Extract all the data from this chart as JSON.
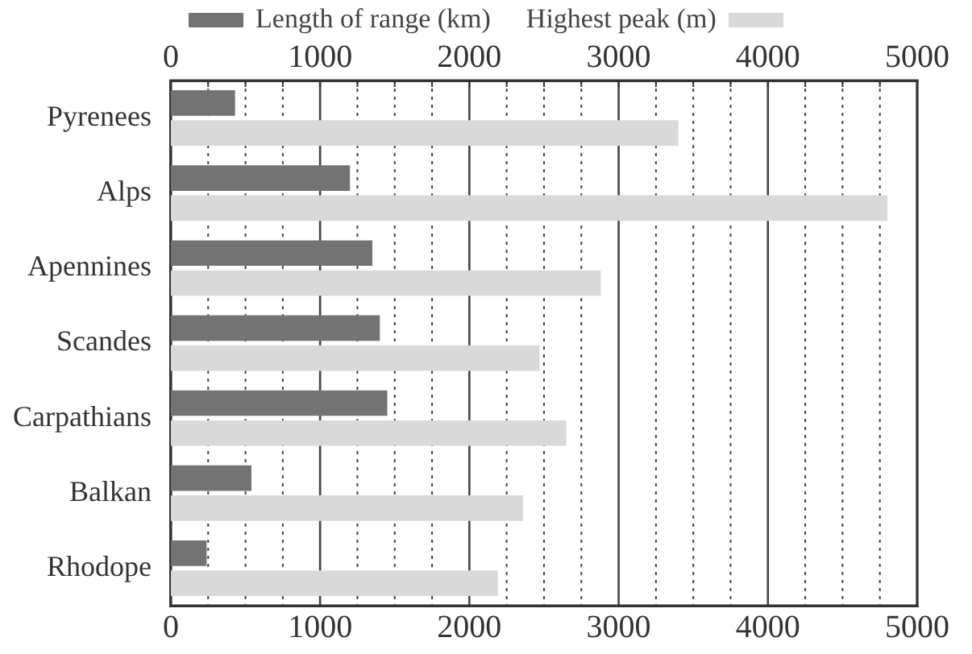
{
  "chart_data": {
    "type": "bar",
    "orientation": "horizontal",
    "categories": [
      "Pyrenees",
      "Alps",
      "Apennines",
      "Scandes",
      "Carpathians",
      "Balkan",
      "Rhodope"
    ],
    "series": [
      {
        "name": "Length of range (km)",
        "color": "#737373",
        "values": [
          430,
          1200,
          1350,
          1400,
          1450,
          540,
          240
        ]
      },
      {
        "name": "Highest peak (m)",
        "color": "#d9d9d9",
        "values": [
          3400,
          4800,
          2880,
          2470,
          2650,
          2360,
          2190
        ]
      }
    ],
    "xlim": [
      0,
      5000
    ],
    "xticks": [
      0,
      {
        "value": 250,
        "label": null
      },
      {
        "value": 500,
        "label": null
      },
      {
        "value": 750,
        "label": null
      },
      1000,
      {
        "value": 1250,
        "label": null
      },
      {
        "value": 1500,
        "label": null
      },
      {
        "value": 1750,
        "label": null
      },
      2000,
      {
        "value": 2250,
        "label": null
      },
      {
        "value": 2500,
        "label": null
      },
      {
        "value": 2750,
        "label": null
      },
      3000,
      {
        "value": 3250,
        "label": null
      },
      {
        "value": 3500,
        "label": null
      },
      {
        "value": 3750,
        "label": null
      },
      4000,
      {
        "value": 4250,
        "label": null
      },
      {
        "value": 4500,
        "label": null
      },
      {
        "value": 4750,
        "label": null
      },
      5000
    ],
    "x2lim": [
      0,
      5000
    ],
    "x2ticks": [
      0,
      {
        "value": 250,
        "label": null
      },
      {
        "value": 500,
        "label": null
      },
      {
        "value": 750,
        "label": null
      },
      1000,
      {
        "value": 1250,
        "label": null
      },
      {
        "value": 1500,
        "label": null
      },
      {
        "value": 1750,
        "label": null
      },
      2000,
      {
        "value": 2250,
        "label": null
      },
      {
        "value": 2500,
        "label": null
      },
      {
        "value": 2750,
        "label": null
      },
      3000,
      {
        "value": 3250,
        "label": null
      },
      {
        "value": 3500,
        "label": null
      },
      {
        "value": 3750,
        "label": null
      },
      4000,
      {
        "value": 4250,
        "label": null
      },
      {
        "value": 4500,
        "label": null
      },
      {
        "value": 4750,
        "label": null
      },
      5000
    ],
    "grid": "x",
    "legend": "top"
  }
}
